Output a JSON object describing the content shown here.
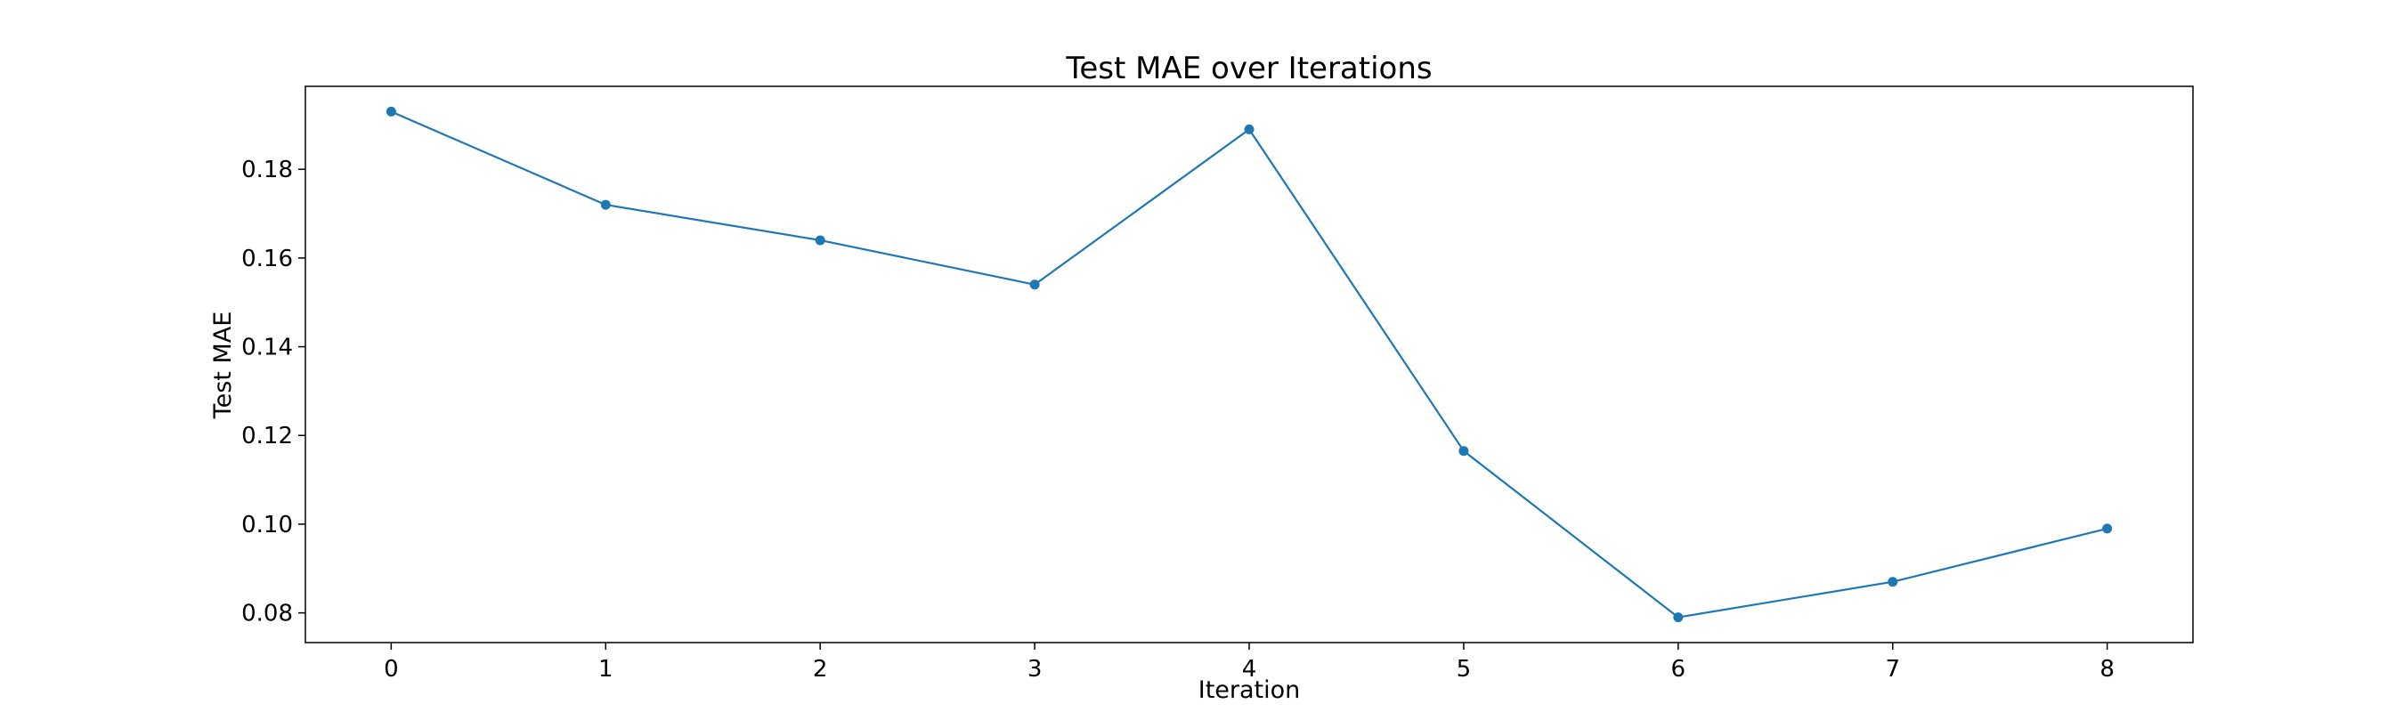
{
  "chart_data": {
    "type": "line",
    "title": "Test MAE over Iterations",
    "xlabel": "Iteration",
    "ylabel": "Test MAE",
    "x": [
      0,
      1,
      2,
      3,
      4,
      5,
      6,
      7,
      8
    ],
    "series": [
      {
        "values": [
          0.193,
          0.172,
          0.164,
          0.154,
          0.189,
          0.1165,
          0.079,
          0.087,
          0.099
        ],
        "color": "#1f77b4",
        "marker": "circle"
      }
    ],
    "x_ticks": [
      "0",
      "1",
      "2",
      "3",
      "4",
      "5",
      "6",
      "7",
      "8"
    ],
    "y_ticks": [
      "0.08",
      "0.10",
      "0.12",
      "0.14",
      "0.16",
      "0.18"
    ],
    "y_tick_values": [
      0.08,
      0.1,
      0.12,
      0.14,
      0.16,
      0.18
    ],
    "xlim": [
      -0.4,
      8.4
    ],
    "ylim": [
      0.0733,
      0.1987
    ],
    "grid": false,
    "legend": "none"
  }
}
